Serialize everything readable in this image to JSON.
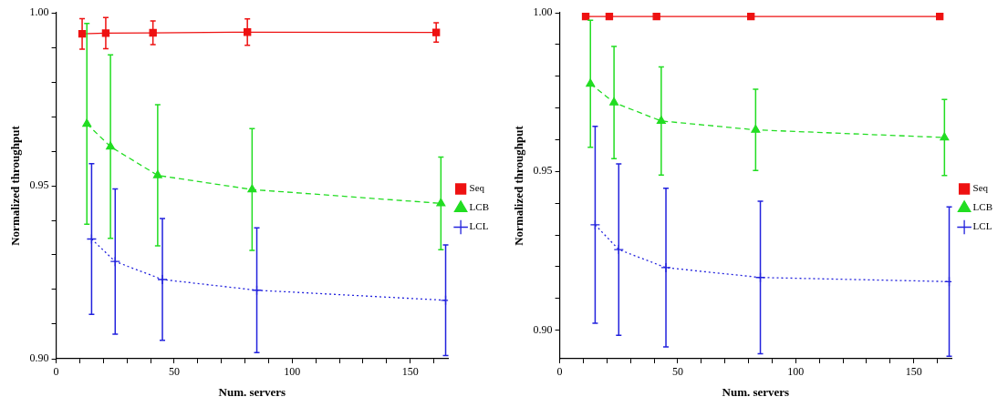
{
  "chart_data": [
    {
      "type": "line",
      "xlabel": "Num. servers",
      "ylabel": "Normalized throughput",
      "xlim": [
        0,
        166
      ],
      "ylim": [
        0.9,
        1.0
      ],
      "xticks": [
        0,
        {
          "value": 10,
          "label": null
        },
        {
          "value": 20,
          "label": null
        },
        {
          "value": 30,
          "label": null
        },
        {
          "value": 40,
          "label": null
        },
        50,
        {
          "value": 60,
          "label": null
        },
        {
          "value": 70,
          "label": null
        },
        {
          "value": 80,
          "label": null
        },
        {
          "value": 90,
          "label": null
        },
        100,
        {
          "value": 110,
          "label": null
        },
        {
          "value": 120,
          "label": null
        },
        {
          "value": 130,
          "label": null
        },
        {
          "value": 140,
          "label": null
        },
        150,
        {
          "value": 160,
          "label": null
        }
      ],
      "yticks": [
        {
          "value": 0.9,
          "label": "0.90"
        },
        {
          "value": 0.91,
          "label": null
        },
        {
          "value": 0.92,
          "label": null
        },
        {
          "value": 0.93,
          "label": null
        },
        {
          "value": 0.94,
          "label": null
        },
        {
          "value": 0.95,
          "label": "0.95"
        },
        {
          "value": 0.96,
          "label": null
        },
        {
          "value": 0.97,
          "label": null
        },
        {
          "value": 0.98,
          "label": null
        },
        {
          "value": 0.99,
          "label": null
        },
        {
          "value": 1.0,
          "label": "1.00"
        }
      ],
      "grid": false,
      "legend": "right",
      "series": [
        {
          "name": "Seq",
          "color": "#ee1111",
          "marker": "square",
          "line_style": "solid",
          "x": [
            11,
            21,
            41,
            81,
            161
          ],
          "values": [
            0.9939,
            0.9941,
            0.9942,
            0.9944,
            0.9943
          ],
          "errors": [
            0.0044,
            0.0045,
            0.0034,
            0.0038,
            0.0028
          ]
        },
        {
          "name": "LCB",
          "color": "#22dd22",
          "marker": "triangle",
          "line_style": "dashed",
          "x": [
            13,
            23,
            43,
            83,
            163
          ],
          "values": [
            0.9679,
            0.9613,
            0.953,
            0.9489,
            0.9449
          ],
          "errors": [
            0.029,
            0.0265,
            0.0204,
            0.0176,
            0.0134
          ]
        },
        {
          "name": "LCL",
          "color": "#2222dd",
          "marker": "cross",
          "line_style": "dotted",
          "x": [
            15,
            25,
            45,
            85,
            165
          ],
          "values": [
            0.9346,
            0.9281,
            0.9229,
            0.9198,
            0.9169
          ],
          "errors": [
            0.0218,
            0.021,
            0.0176,
            0.018,
            0.016
          ]
        }
      ]
    },
    {
      "type": "line",
      "xlabel": "Num. servers",
      "ylabel": "Normalized throughput",
      "xlim": [
        0,
        166
      ],
      "ylim": [
        0.891,
        1.0
      ],
      "xticks": [
        0,
        {
          "value": 10,
          "label": null
        },
        {
          "value": 20,
          "label": null
        },
        {
          "value": 30,
          "label": null
        },
        {
          "value": 40,
          "label": null
        },
        50,
        {
          "value": 60,
          "label": null
        },
        {
          "value": 70,
          "label": null
        },
        {
          "value": 80,
          "label": null
        },
        {
          "value": 90,
          "label": null
        },
        100,
        {
          "value": 110,
          "label": null
        },
        {
          "value": 120,
          "label": null
        },
        {
          "value": 130,
          "label": null
        },
        {
          "value": 140,
          "label": null
        },
        150,
        {
          "value": 160,
          "label": null
        }
      ],
      "yticks": [
        {
          "value": 0.9,
          "label": "0.90"
        },
        {
          "value": 0.91,
          "label": null
        },
        {
          "value": 0.92,
          "label": null
        },
        {
          "value": 0.93,
          "label": null
        },
        {
          "value": 0.94,
          "label": null
        },
        {
          "value": 0.95,
          "label": "0.95"
        },
        {
          "value": 0.96,
          "label": null
        },
        {
          "value": 0.97,
          "label": null
        },
        {
          "value": 0.98,
          "label": null
        },
        {
          "value": 0.99,
          "label": null
        },
        {
          "value": 1.0,
          "label": "1.00"
        }
      ],
      "grid": false,
      "legend": "right",
      "series": [
        {
          "name": "Seq",
          "color": "#ee1111",
          "marker": "square",
          "line_style": "solid",
          "x": [
            11,
            21,
            41,
            81,
            161
          ],
          "values": [
            0.9988,
            0.9988,
            0.9988,
            0.9988,
            0.9988
          ]
        },
        {
          "name": "LCB",
          "color": "#22dd22",
          "marker": "triangle",
          "line_style": "dashed",
          "x": [
            13,
            23,
            43,
            83,
            163
          ],
          "values": [
            0.9776,
            0.9717,
            0.9659,
            0.9631,
            0.9607
          ],
          "errors": [
            0.02,
            0.0177,
            0.017,
            0.0128,
            0.012
          ]
        },
        {
          "name": "LCL",
          "color": "#2222dd",
          "marker": "cross",
          "line_style": "dotted",
          "x": [
            15,
            25,
            45,
            85,
            165
          ],
          "values": [
            0.9332,
            0.9254,
            0.9197,
            0.9166,
            0.9153
          ],
          "errors": [
            0.031,
            0.027,
            0.025,
            0.024,
            0.0235
          ]
        }
      ]
    }
  ]
}
